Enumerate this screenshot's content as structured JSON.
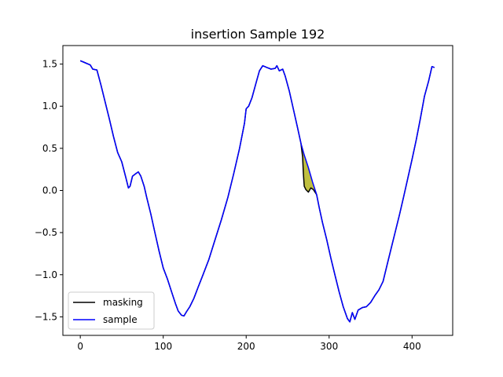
{
  "chart_data": {
    "type": "line",
    "title": "insertion Sample 192",
    "xlabel": "",
    "ylabel": "",
    "xlim": [
      -21,
      449
    ],
    "ylim": [
      -1.72,
      1.72
    ],
    "xticks": [
      0,
      100,
      200,
      300,
      400
    ],
    "yticks": [
      -1.5,
      -1.0,
      -0.5,
      0.0,
      0.5,
      1.0,
      1.5
    ],
    "xtick_labels": [
      "0",
      "100",
      "200",
      "300",
      "400"
    ],
    "ytick_labels": [
      "−1.5",
      "−1.0",
      "−0.5",
      "0.0",
      "0.5",
      "1.0",
      "1.5"
    ],
    "grid": false,
    "legend_position": "lower-left",
    "fill_between_color": "#bfbf3f",
    "series": [
      {
        "name": "masking",
        "color": "#000000",
        "points": [
          [
            0,
            1.54
          ],
          [
            5,
            1.52
          ],
          [
            12,
            1.49
          ],
          [
            15,
            1.44
          ],
          [
            20,
            1.43
          ],
          [
            25,
            1.25
          ],
          [
            30,
            1.05
          ],
          [
            35,
            0.85
          ],
          [
            40,
            0.64
          ],
          [
            45,
            0.45
          ],
          [
            50,
            0.34
          ],
          [
            55,
            0.15
          ],
          [
            58,
            0.03
          ],
          [
            60,
            0.05
          ],
          [
            63,
            0.17
          ],
          [
            67,
            0.2
          ],
          [
            70,
            0.22
          ],
          [
            73,
            0.17
          ],
          [
            77,
            0.05
          ],
          [
            80,
            -0.08
          ],
          [
            85,
            -0.28
          ],
          [
            90,
            -0.5
          ],
          [
            95,
            -0.72
          ],
          [
            100,
            -0.92
          ],
          [
            105,
            -1.05
          ],
          [
            110,
            -1.2
          ],
          [
            115,
            -1.35
          ],
          [
            118,
            -1.43
          ],
          [
            122,
            -1.48
          ],
          [
            125,
            -1.49
          ],
          [
            128,
            -1.44
          ],
          [
            132,
            -1.38
          ],
          [
            137,
            -1.28
          ],
          [
            142,
            -1.15
          ],
          [
            148,
            -1.0
          ],
          [
            155,
            -0.82
          ],
          [
            162,
            -0.6
          ],
          [
            170,
            -0.35
          ],
          [
            178,
            -0.08
          ],
          [
            185,
            0.2
          ],
          [
            192,
            0.5
          ],
          [
            198,
            0.8
          ],
          [
            200,
            0.97
          ],
          [
            203,
            1.0
          ],
          [
            207,
            1.1
          ],
          [
            212,
            1.28
          ],
          [
            216,
            1.42
          ],
          [
            220,
            1.48
          ],
          [
            225,
            1.46
          ],
          [
            230,
            1.44
          ],
          [
            235,
            1.45
          ],
          [
            237,
            1.48
          ],
          [
            240,
            1.42
          ],
          [
            244,
            1.44
          ],
          [
            247,
            1.36
          ],
          [
            252,
            1.18
          ],
          [
            257,
            0.96
          ],
          [
            262,
            0.74
          ],
          [
            266,
            0.56
          ],
          [
            268,
            0.4
          ],
          [
            269,
            0.2
          ],
          [
            270,
            0.05
          ],
          [
            272,
            0.01
          ],
          [
            275,
            -0.02
          ],
          [
            278,
            0.03
          ],
          [
            281,
            0.01
          ],
          [
            285,
            -0.05
          ],
          [
            288,
            -0.2
          ],
          [
            292,
            -0.38
          ],
          [
            297,
            -0.58
          ],
          [
            302,
            -0.8
          ],
          [
            307,
            -1.0
          ],
          [
            312,
            -1.2
          ],
          [
            317,
            -1.38
          ],
          [
            322,
            -1.52
          ],
          [
            325,
            -1.56
          ],
          [
            328,
            -1.45
          ],
          [
            331,
            -1.53
          ],
          [
            335,
            -1.42
          ],
          [
            340,
            -1.39
          ],
          [
            345,
            -1.38
          ],
          [
            350,
            -1.33
          ],
          [
            355,
            -1.25
          ],
          [
            360,
            -1.18
          ],
          [
            365,
            -1.08
          ],
          [
            370,
            -0.88
          ],
          [
            375,
            -0.68
          ],
          [
            380,
            -0.48
          ],
          [
            385,
            -0.28
          ],
          [
            390,
            -0.07
          ],
          [
            395,
            0.15
          ],
          [
            400,
            0.37
          ],
          [
            405,
            0.6
          ],
          [
            410,
            0.85
          ],
          [
            415,
            1.12
          ],
          [
            420,
            1.3
          ],
          [
            424,
            1.47
          ],
          [
            427,
            1.46
          ]
        ]
      },
      {
        "name": "sample",
        "color": "#0000ff",
        "points": [
          [
            0,
            1.54
          ],
          [
            5,
            1.52
          ],
          [
            12,
            1.49
          ],
          [
            15,
            1.44
          ],
          [
            20,
            1.43
          ],
          [
            25,
            1.25
          ],
          [
            30,
            1.05
          ],
          [
            35,
            0.85
          ],
          [
            40,
            0.64
          ],
          [
            45,
            0.45
          ],
          [
            50,
            0.34
          ],
          [
            55,
            0.15
          ],
          [
            58,
            0.03
          ],
          [
            60,
            0.05
          ],
          [
            63,
            0.17
          ],
          [
            67,
            0.2
          ],
          [
            70,
            0.22
          ],
          [
            73,
            0.17
          ],
          [
            77,
            0.05
          ],
          [
            80,
            -0.08
          ],
          [
            85,
            -0.28
          ],
          [
            90,
            -0.5
          ],
          [
            95,
            -0.72
          ],
          [
            100,
            -0.92
          ],
          [
            105,
            -1.05
          ],
          [
            110,
            -1.2
          ],
          [
            115,
            -1.35
          ],
          [
            118,
            -1.43
          ],
          [
            122,
            -1.48
          ],
          [
            125,
            -1.49
          ],
          [
            128,
            -1.44
          ],
          [
            132,
            -1.38
          ],
          [
            137,
            -1.28
          ],
          [
            142,
            -1.15
          ],
          [
            148,
            -1.0
          ],
          [
            155,
            -0.82
          ],
          [
            162,
            -0.6
          ],
          [
            170,
            -0.35
          ],
          [
            178,
            -0.08
          ],
          [
            185,
            0.2
          ],
          [
            192,
            0.5
          ],
          [
            198,
            0.8
          ],
          [
            200,
            0.97
          ],
          [
            203,
            1.0
          ],
          [
            207,
            1.1
          ],
          [
            212,
            1.28
          ],
          [
            216,
            1.42
          ],
          [
            220,
            1.48
          ],
          [
            225,
            1.46
          ],
          [
            230,
            1.44
          ],
          [
            235,
            1.45
          ],
          [
            237,
            1.48
          ],
          [
            240,
            1.42
          ],
          [
            244,
            1.44
          ],
          [
            247,
            1.36
          ],
          [
            252,
            1.18
          ],
          [
            257,
            0.96
          ],
          [
            262,
            0.74
          ],
          [
            266,
            0.56
          ],
          [
            270,
            0.42
          ],
          [
            275,
            0.27
          ],
          [
            280,
            0.1
          ],
          [
            285,
            -0.05
          ],
          [
            288,
            -0.2
          ],
          [
            292,
            -0.38
          ],
          [
            297,
            -0.58
          ],
          [
            302,
            -0.8
          ],
          [
            307,
            -1.0
          ],
          [
            312,
            -1.2
          ],
          [
            317,
            -1.38
          ],
          [
            322,
            -1.52
          ],
          [
            325,
            -1.56
          ],
          [
            328,
            -1.45
          ],
          [
            331,
            -1.53
          ],
          [
            335,
            -1.42
          ],
          [
            340,
            -1.39
          ],
          [
            345,
            -1.38
          ],
          [
            350,
            -1.33
          ],
          [
            355,
            -1.25
          ],
          [
            360,
            -1.18
          ],
          [
            365,
            -1.08
          ],
          [
            370,
            -0.88
          ],
          [
            375,
            -0.68
          ],
          [
            380,
            -0.48
          ],
          [
            385,
            -0.28
          ],
          [
            390,
            -0.07
          ],
          [
            395,
            0.15
          ],
          [
            400,
            0.37
          ],
          [
            405,
            0.6
          ],
          [
            410,
            0.85
          ],
          [
            415,
            1.12
          ],
          [
            420,
            1.3
          ],
          [
            424,
            1.47
          ],
          [
            427,
            1.46
          ]
        ]
      }
    ]
  }
}
